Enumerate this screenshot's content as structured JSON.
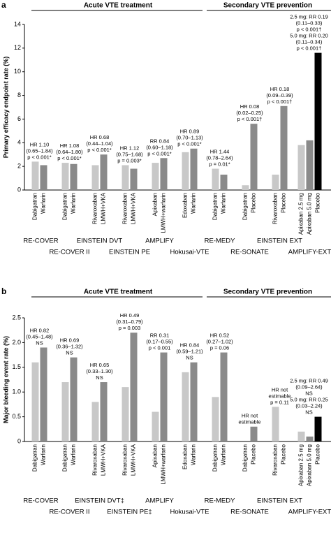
{
  "chart_data": [
    {
      "type": "bar",
      "panel": "a",
      "ylabel": "Primary efficacy endpoint rate (%)",
      "sections": [
        "Acute VTE treatment",
        "Secondary VTE prevention"
      ],
      "ylim": [
        0,
        14
      ],
      "yticks": [
        0,
        2,
        4,
        6,
        8,
        10,
        12,
        14
      ],
      "groups": [
        {
          "trial": "RE-COVER",
          "annotation": [
            "HR 1.10",
            "(0.65–1.84)",
            "p < 0.001*"
          ],
          "bars": [
            {
              "label": "Dabigatran",
              "value": 2.4,
              "color": "#c8c8c8"
            },
            {
              "label": "Warfarin",
              "value": 2.1,
              "color": "#8a8a8a"
            }
          ]
        },
        {
          "trial": "RE-COVER II",
          "annotation": [
            "HR 1.08",
            "(0.64–1.80)",
            "p < 0.001*"
          ],
          "bars": [
            {
              "label": "Dabigatran",
              "value": 2.3,
              "color": "#c8c8c8"
            },
            {
              "label": "Warfarin",
              "value": 2.2,
              "color": "#8a8a8a"
            }
          ]
        },
        {
          "trial": "EINSTEIN DVT",
          "annotation": [
            "HR 0.68",
            "(0.44–1.04)",
            "p < 0.001*"
          ],
          "bars": [
            {
              "label": "Rivaroxaban",
              "value": 2.1,
              "color": "#c8c8c8"
            },
            {
              "label": "LMWH+VKA",
              "value": 3.0,
              "color": "#8a8a8a"
            }
          ]
        },
        {
          "trial": "EINSTEIN PE",
          "annotation": [
            "HR 1.12",
            "(0.75–1.68)",
            "p = 0.003*"
          ],
          "bars": [
            {
              "label": "Rivaroxaban",
              "value": 2.1,
              "color": "#c8c8c8"
            },
            {
              "label": "LMWH+VKA",
              "value": 1.8,
              "color": "#8a8a8a"
            }
          ]
        },
        {
          "trial": "AMPLIFY",
          "annotation": [
            "RR 0.84",
            "(0.60–1.18)",
            "p < 0.001*"
          ],
          "bars": [
            {
              "label": "Apixaban",
              "value": 2.3,
              "color": "#c8c8c8"
            },
            {
              "label": "LMWH+warfarin",
              "value": 2.7,
              "color": "#8a8a8a"
            }
          ]
        },
        {
          "trial": "Hokusai-VTE",
          "annotation": [
            "HR 0.89",
            "(0.70–1.13)",
            "p < 0.001*"
          ],
          "bars": [
            {
              "label": "Edoxaban",
              "value": 3.2,
              "color": "#c8c8c8"
            },
            {
              "label": "Warfarin",
              "value": 3.5,
              "color": "#8a8a8a"
            }
          ]
        },
        {
          "trial": "RE-MEDY",
          "annotation": [
            "HR 1.44",
            "(0.78–2.64)",
            "p = 0.01*"
          ],
          "bars": [
            {
              "label": "Dabigatran",
              "value": 1.8,
              "color": "#c8c8c8"
            },
            {
              "label": "Warfarin",
              "value": 1.3,
              "color": "#8a8a8a"
            }
          ]
        },
        {
          "trial": "RE-SONATE",
          "annotation": [
            "HR 0.08",
            "(0.02–0.25)",
            "p < 0.001†"
          ],
          "bars": [
            {
              "label": "Dabigatran",
              "value": 0.4,
              "color": "#c8c8c8"
            },
            {
              "label": "Placebo",
              "value": 5.6,
              "color": "#8a8a8a"
            }
          ]
        },
        {
          "trial": "EINSTEIN EXT",
          "annotation": [
            "HR 0.18",
            "(0.09–0.39)",
            "p < 0.001†"
          ],
          "bars": [
            {
              "label": "Rivaroxaban",
              "value": 1.3,
              "color": "#c8c8c8"
            },
            {
              "label": "Placebo",
              "value": 7.1,
              "color": "#8a8a8a"
            }
          ]
        },
        {
          "trial": "AMPLIFY-EXT",
          "annotation": [
            "2.5 mg: RR 0.19",
            "(0.11–0.33)",
            "p < 0.001†",
            "5.0 mg: RR 0.20",
            "(0.11–0.34)",
            "p < 0.001†"
          ],
          "bars": [
            {
              "label": "Apixaban 2.5 mg",
              "value": 3.8,
              "color": "#c8c8c8"
            },
            {
              "label": "Apixaban 5.0 mg",
              "value": 4.2,
              "color": "#8a8a8a"
            },
            {
              "label": "Placebo",
              "value": 11.6,
              "color": "#000000"
            }
          ]
        }
      ]
    },
    {
      "type": "bar",
      "panel": "b",
      "ylabel": "Major bleeding event rate (%)",
      "sections": [
        "Acute VTE treatment",
        "Secondary VTE prevention"
      ],
      "ylim": [
        0,
        2.5
      ],
      "yticks": [
        0,
        0.5,
        {
          "value": 1,
          "label": "1.0"
        },
        1.5,
        {
          "value": 2,
          "label": "2.0"
        },
        2.5
      ],
      "groups": [
        {
          "trial": "RE-COVER",
          "annotation": [
            "HR 0.82",
            "(0.45–1.48)",
            "NS"
          ],
          "bars": [
            {
              "label": "Dabigatran",
              "value": 1.6,
              "color": "#c8c8c8"
            },
            {
              "label": "Warfarin",
              "value": 1.9,
              "color": "#8a8a8a"
            }
          ]
        },
        {
          "trial": "RE-COVER II",
          "annotation": [
            "HR 0.69",
            "(0.36–1.32)",
            "NS"
          ],
          "bars": [
            {
              "label": "Dabigatran",
              "value": 1.2,
              "color": "#c8c8c8"
            },
            {
              "label": "Warfarin",
              "value": 1.7,
              "color": "#8a8a8a"
            }
          ]
        },
        {
          "trial": "EINSTEIN DVT‡",
          "annotation": [
            "HR 0.65",
            "(0.33–1.30)",
            "NS"
          ],
          "bars": [
            {
              "label": "Rivaroxaban",
              "value": 0.8,
              "color": "#c8c8c8"
            },
            {
              "label": "LMWH+VKA",
              "value": 1.2,
              "color": "#8a8a8a"
            }
          ]
        },
        {
          "trial": "EINSTEIN PE‡",
          "annotation": [
            "HR 0.49",
            "(0.31–0.79)",
            "p = 0.003"
          ],
          "bars": [
            {
              "label": "Rivaroxaban",
              "value": 1.1,
              "color": "#c8c8c8"
            },
            {
              "label": "LMWH+VKA",
              "value": 2.2,
              "color": "#8a8a8a"
            }
          ]
        },
        {
          "trial": "AMPLIFY",
          "annotation": [
            "RR 0.31",
            "(0.17–0.55)",
            "p < 0.001"
          ],
          "bars": [
            {
              "label": "Apixaban",
              "value": 0.6,
              "color": "#c8c8c8"
            },
            {
              "label": "LMWH+warfarin",
              "value": 1.8,
              "color": "#8a8a8a"
            }
          ]
        },
        {
          "trial": "Hokusai-VTE",
          "annotation": [
            "HR 0.84",
            "(0.59–1.21)",
            "NS"
          ],
          "bars": [
            {
              "label": "Edoxaban",
              "value": 1.4,
              "color": "#c8c8c8"
            },
            {
              "label": "Warfarin",
              "value": 1.6,
              "color": "#8a8a8a"
            }
          ]
        },
        {
          "trial": "RE-MEDY",
          "annotation": [
            "HR 0.52",
            "(0.27–1.02)",
            "p = 0.06"
          ],
          "bars": [
            {
              "label": "Dabigatran",
              "value": 0.9,
              "color": "#c8c8c8"
            },
            {
              "label": "Warfarin",
              "value": 1.8,
              "color": "#8a8a8a"
            }
          ]
        },
        {
          "trial": "RE-SONATE",
          "annotation": [
            "HR not",
            "estimable"
          ],
          "bars": [
            {
              "label": "Dabigatran",
              "value": 0,
              "color": "#c8c8c8"
            },
            {
              "label": "Placebo",
              "value": 0.3,
              "color": "#8a8a8a"
            }
          ]
        },
        {
          "trial": "EINSTEIN EXT",
          "annotation": [
            "HR not",
            "estimable",
            "p = 0.11"
          ],
          "bars": [
            {
              "label": "Rivaroxaban",
              "value": 0.7,
              "color": "#c8c8c8"
            },
            {
              "label": "Placebo",
              "value": 0,
              "color": "#8a8a8a"
            }
          ]
        },
        {
          "trial": "AMPLIFY-EXT",
          "annotation": [
            "2.5 mg: RR 0.49",
            "(0.09–2.64)",
            "NS",
            "5.0 mg: RR 0.25",
            "(0.03–2.24)",
            "NS"
          ],
          "bars": [
            {
              "label": "Apixaban 2.5 mg",
              "value": 0.2,
              "color": "#c8c8c8"
            },
            {
              "label": "Apixaban 5.0 mg",
              "value": 0.1,
              "color": "#8a8a8a"
            },
            {
              "label": "Placebo",
              "value": 0.5,
              "color": "#000000"
            }
          ]
        }
      ]
    }
  ]
}
